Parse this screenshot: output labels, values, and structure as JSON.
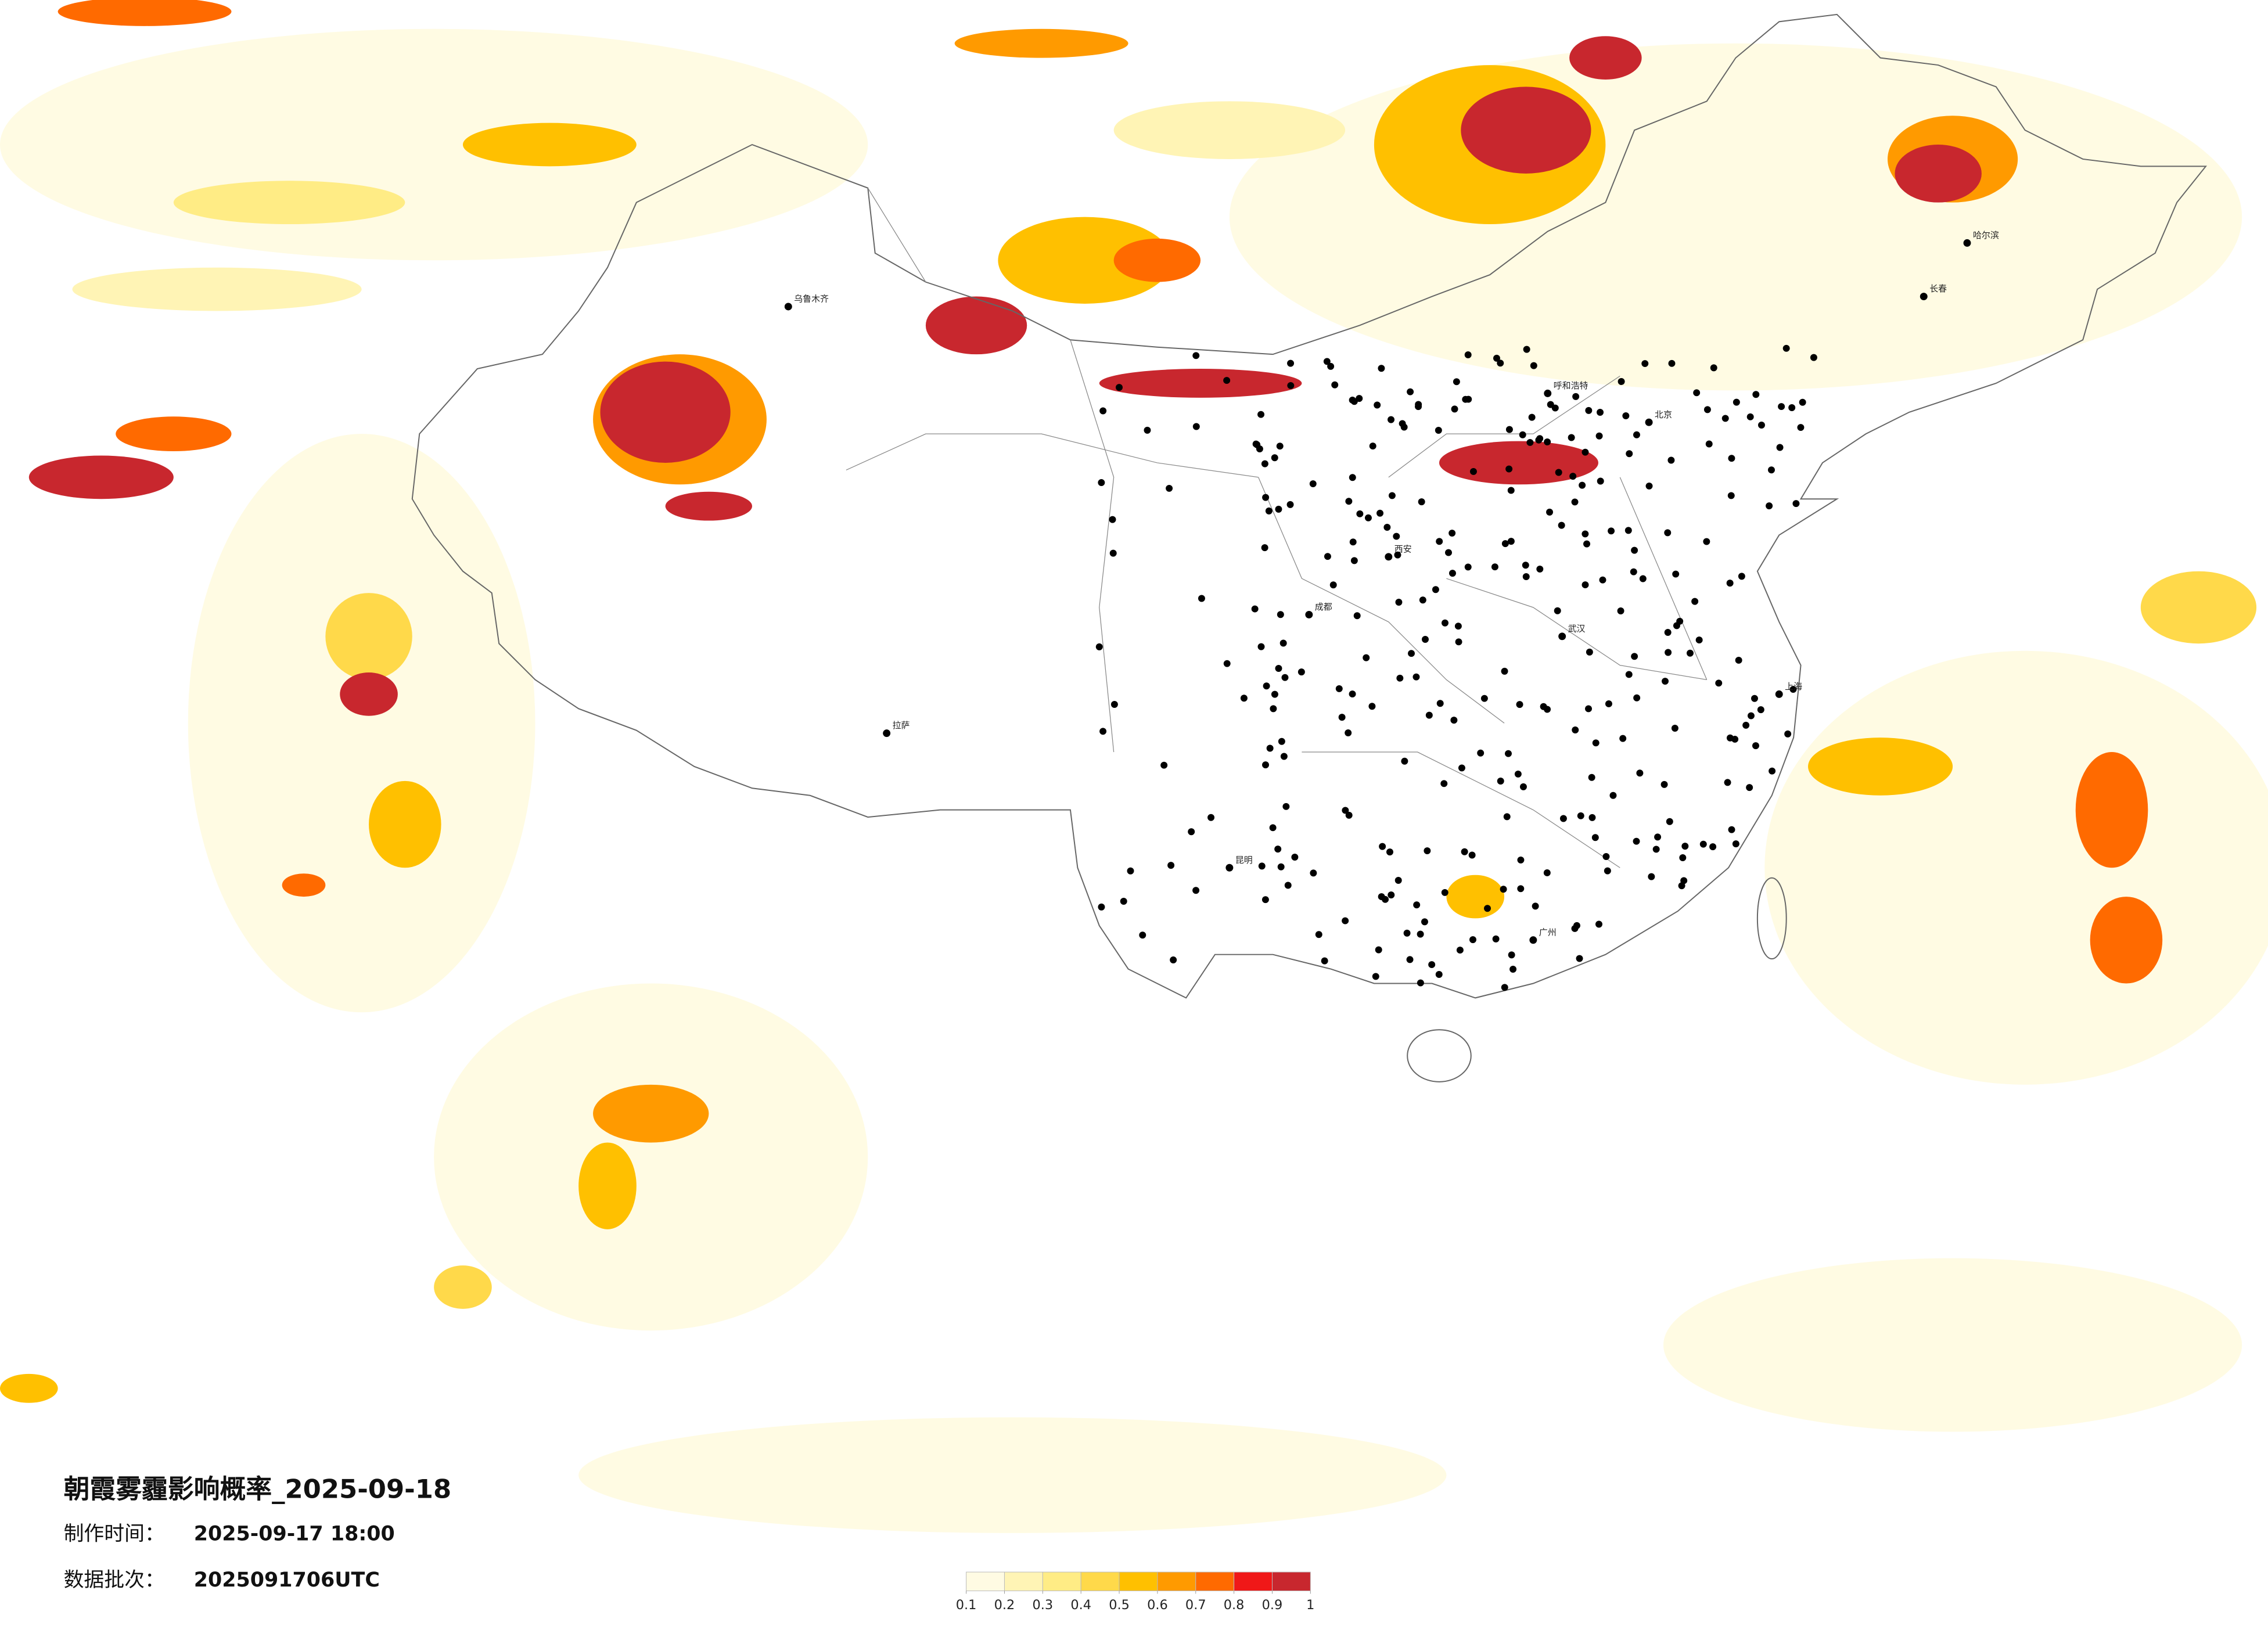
{
  "title": "朝霞雾霾影响概率_2025-09-18",
  "info": [
    {
      "label": "制作时间：",
      "value": "2025-09-17 18:00"
    },
    {
      "label": "数据批次：",
      "value": "2025091706UTC"
    }
  ],
  "legend": {
    "colors": [
      "#fffbe3",
      "#fff4b5",
      "#ffec85",
      "#ffd94a",
      "#ffc000",
      "#ff9a00",
      "#ff6a00",
      "#f01818",
      "#c8272e"
    ],
    "ticks": [
      0.1,
      0.2,
      0.3,
      0.4,
      0.5,
      0.6,
      0.7,
      0.8,
      0.9,
      1
    ]
  },
  "cities": [
    "北京",
    "上海",
    "广州",
    "成都",
    "乌鲁木齐",
    "拉萨",
    "哈尔滨",
    "西安",
    "武汉",
    "昆明",
    "呼和浩特",
    "长春"
  ]
}
